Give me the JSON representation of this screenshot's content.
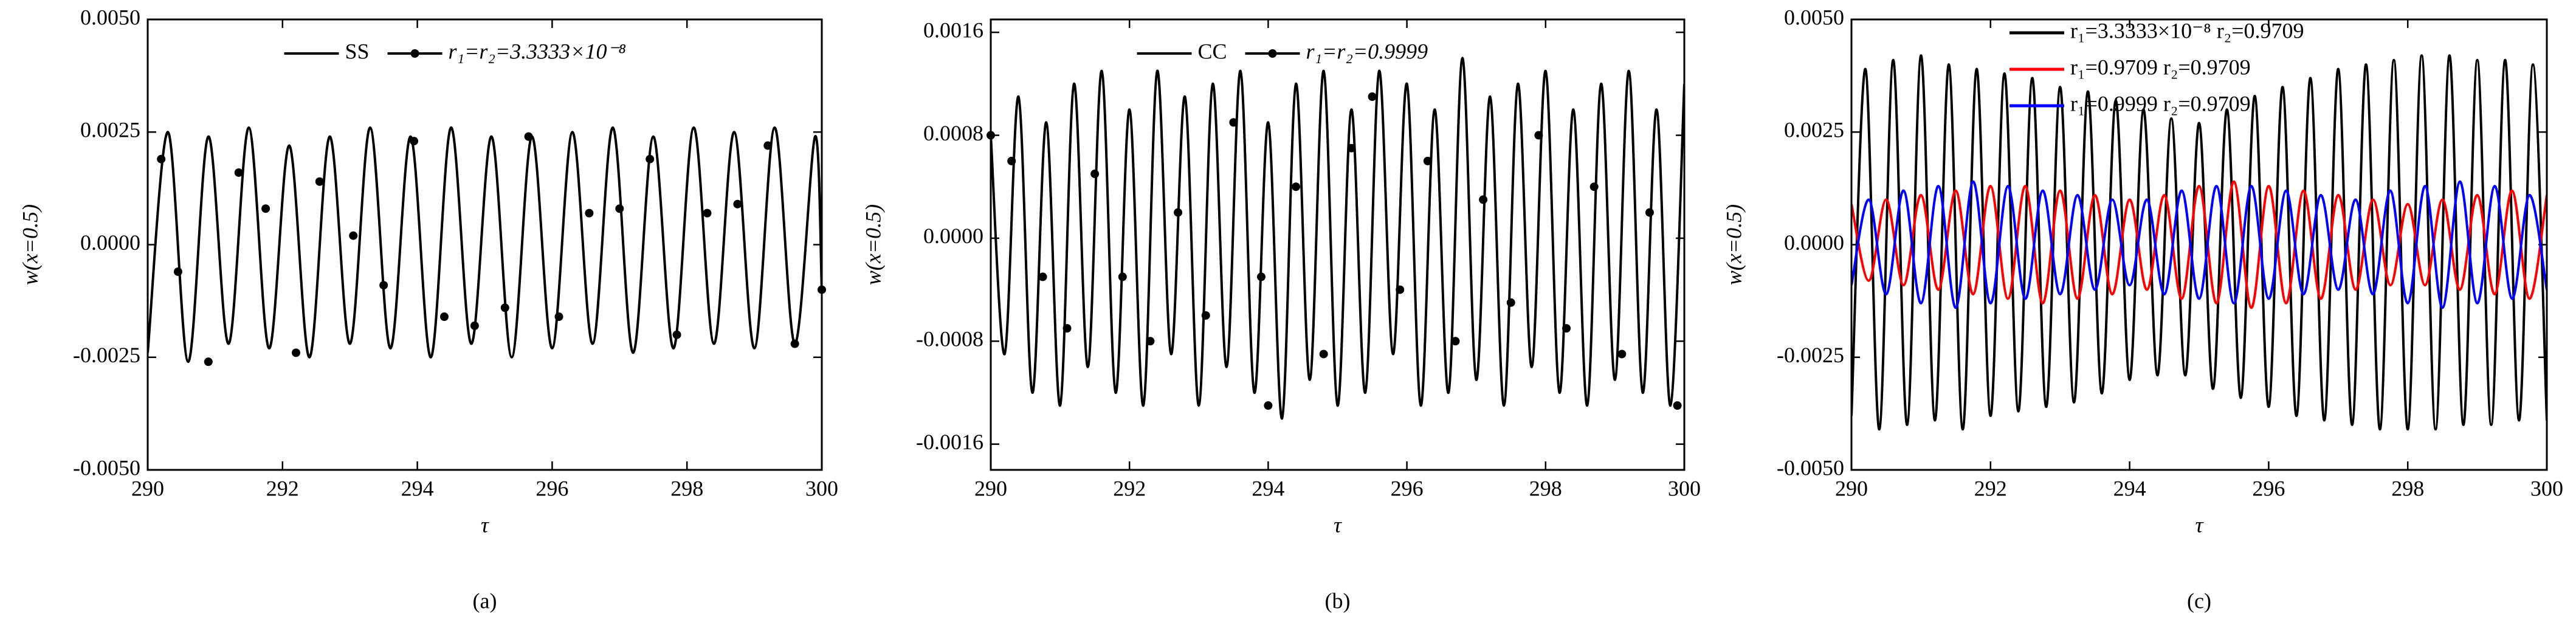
{
  "chart_data": [
    {
      "type": "line",
      "label": "(a)",
      "xlabel": "τ",
      "ylabel": "w(x=0.5)",
      "legend": "top-center",
      "xlim": [
        290,
        300
      ],
      "xticks": [
        290,
        292,
        294,
        296,
        298,
        300
      ],
      "ylim": [
        -0.005,
        0.005
      ],
      "yticks": [
        {
          "value": -0.005,
          "label": "-0.0050"
        },
        {
          "value": -0.0025,
          "label": "-0.0025"
        },
        {
          "value": 0,
          "label": "0.0000"
        },
        {
          "value": 0.0025,
          "label": "0.0025"
        },
        {
          "value": 0.005,
          "label": "0.0050"
        }
      ],
      "series": [
        {
          "name": "SS",
          "color": "#000000",
          "style": "line",
          "x": [
            290,
            290.3,
            290.6,
            290.9,
            291.2,
            291.5,
            291.8,
            292.1,
            292.4,
            292.7,
            293,
            293.3,
            293.6,
            293.9,
            294.2,
            294.5,
            294.8,
            295.1,
            295.4,
            295.7,
            296,
            296.3,
            296.6,
            296.9,
            297.2,
            297.5,
            297.8,
            298.1,
            298.4,
            298.7,
            299,
            299.3,
            299.6,
            299.9,
            300
          ],
          "values": [
            -0.0024,
            0.0025,
            -0.0026,
            0.0024,
            -0.0022,
            0.0026,
            -0.0023,
            0.0022,
            -0.0025,
            0.0024,
            -0.0022,
            0.0026,
            -0.0023,
            0.0024,
            -0.0025,
            0.0026,
            -0.0022,
            0.0024,
            -0.0025,
            0.0024,
            -0.0023,
            0.0025,
            -0.0022,
            0.0026,
            -0.0024,
            0.0024,
            -0.0023,
            0.0026,
            -0.0022,
            0.0025,
            -0.0023,
            0.0026,
            -0.0022,
            0.0024,
            -0.001
          ]
        },
        {
          "name": "r₁=r₂=3.3333×10⁻⁸",
          "color": "#000000",
          "style": "markers",
          "x": [
            290.2,
            290.45,
            290.9,
            291.35,
            291.75,
            292.2,
            292.55,
            293.05,
            293.5,
            293.95,
            294.4,
            294.85,
            295.3,
            295.65,
            296.1,
            296.55,
            297.0,
            297.45,
            297.85,
            298.3,
            298.75,
            299.2,
            299.6,
            300
          ],
          "values": [
            0.0019,
            -0.0006,
            -0.0026,
            0.0016,
            0.0008,
            -0.0024,
            0.0014,
            0.0002,
            -0.0009,
            0.0023,
            -0.0016,
            -0.0018,
            -0.0014,
            0.0024,
            -0.0016,
            0.0007,
            0.0008,
            0.0019,
            -0.002,
            0.0007,
            0.0009,
            0.0022,
            -0.0022,
            -0.001
          ]
        }
      ]
    },
    {
      "type": "line",
      "label": "(b)",
      "xlabel": "τ",
      "ylabel": "w(x=0.5)",
      "legend": "top-center",
      "xlim": [
        290,
        300
      ],
      "xticks": [
        290,
        292,
        294,
        296,
        298,
        300
      ],
      "ylim": [
        -0.0018,
        0.0017
      ],
      "yticks": [
        {
          "value": -0.0016,
          "label": "-0.0016"
        },
        {
          "value": -0.0008,
          "label": "-0.0008"
        },
        {
          "value": 0,
          "label": "0.0000"
        },
        {
          "value": 0.0008,
          "label": "0.0008"
        },
        {
          "value": 0.0016,
          "label": "0.0016"
        }
      ],
      "series": [
        {
          "name": "CC",
          "color": "#000000",
          "style": "line",
          "x": [
            290,
            290.2,
            290.4,
            290.6,
            290.8,
            291,
            291.2,
            291.4,
            291.6,
            291.8,
            292,
            292.2,
            292.4,
            292.6,
            292.8,
            293,
            293.2,
            293.4,
            293.6,
            293.8,
            294,
            294.2,
            294.4,
            294.6,
            294.8,
            295,
            295.2,
            295.4,
            295.6,
            295.8,
            296,
            296.2,
            296.4,
            296.6,
            296.8,
            297,
            297.2,
            297.4,
            297.6,
            297.8,
            298,
            298.2,
            298.4,
            298.6,
            298.8,
            299,
            299.2,
            299.4,
            299.6,
            299.8,
            300
          ],
          "values": [
            0.0008,
            -0.0009,
            0.0011,
            -0.0012,
            0.0009,
            -0.0013,
            0.0012,
            -0.001,
            0.0013,
            -0.0012,
            0.001,
            -0.0013,
            0.0013,
            -0.0009,
            0.0011,
            -0.0013,
            0.0012,
            -0.001,
            0.0013,
            -0.0012,
            0.0009,
            -0.0014,
            0.0012,
            -0.0011,
            0.0013,
            -0.0013,
            0.001,
            -0.0012,
            0.0013,
            -0.0009,
            0.0012,
            -0.0013,
            0.001,
            -0.0012,
            0.0014,
            -0.0011,
            0.0011,
            -0.0013,
            0.0012,
            -0.001,
            0.0013,
            -0.0012,
            0.001,
            -0.0013,
            0.0012,
            -0.0011,
            0.0013,
            -0.0012,
            0.001,
            -0.0013,
            0.0012
          ]
        },
        {
          "name": "r₁=r₂=0.9999",
          "color": "#000000",
          "style": "markers",
          "x": [
            290,
            290.3,
            290.75,
            291.1,
            291.5,
            291.9,
            292.3,
            292.7,
            293.1,
            293.5,
            293.9,
            294.0,
            294.4,
            294.8,
            295.2,
            295.5,
            295.9,
            296.3,
            296.7,
            297.1,
            297.5,
            297.9,
            298.3,
            298.7,
            299.1,
            299.5,
            299.9
          ],
          "values": [
            0.0008,
            0.0006,
            -0.0003,
            -0.0007,
            0.0005,
            -0.0003,
            -0.0008,
            0.0002,
            -0.0006,
            0.0009,
            -0.0003,
            -0.0013,
            0.0004,
            -0.0009,
            0.0007,
            0.0011,
            -0.0004,
            0.0006,
            -0.0008,
            0.0003,
            -0.0005,
            0.0008,
            -0.0007,
            0.0004,
            -0.0009,
            0.0002,
            -0.0013
          ]
        }
      ]
    },
    {
      "type": "line",
      "label": "(c)",
      "xlabel": "τ",
      "ylabel": "w(x=0.5)",
      "legend": "top-left",
      "xlim": [
        290,
        300
      ],
      "xticks": [
        290,
        292,
        294,
        296,
        298,
        300
      ],
      "ylim": [
        -0.005,
        0.005
      ],
      "yticks": [
        {
          "value": -0.005,
          "label": "-0.0050"
        },
        {
          "value": -0.0025,
          "label": "-0.0025"
        },
        {
          "value": 0,
          "label": "0.0000"
        },
        {
          "value": 0.0025,
          "label": "0.0025"
        },
        {
          "value": 0.005,
          "label": "0.0050"
        }
      ],
      "series": [
        {
          "name": "r₁=3.3333×10⁻⁸  r₂=0.9709",
          "color": "#000000",
          "style": "line",
          "x": [
            290,
            290.2,
            290.4,
            290.6,
            290.8,
            291,
            291.2,
            291.4,
            291.6,
            291.8,
            292,
            292.2,
            292.4,
            292.6,
            292.8,
            293,
            293.2,
            293.4,
            293.6,
            293.8,
            294,
            294.2,
            294.4,
            294.6,
            294.8,
            295,
            295.2,
            295.4,
            295.6,
            295.8,
            296,
            296.2,
            296.4,
            296.6,
            296.8,
            297,
            297.2,
            297.4,
            297.6,
            297.8,
            298,
            298.2,
            298.4,
            298.6,
            298.8,
            299,
            299.2,
            299.4,
            299.6,
            299.8,
            300
          ],
          "values": [
            -0.0038,
            0.0039,
            -0.0041,
            0.0041,
            -0.004,
            0.0042,
            -0.0039,
            0.004,
            -0.0041,
            0.0039,
            -0.0038,
            0.0038,
            -0.0037,
            0.0037,
            -0.0036,
            0.0035,
            -0.0035,
            0.0034,
            -0.0033,
            0.0032,
            -0.003,
            0.003,
            -0.0029,
            0.0028,
            -0.0029,
            0.0027,
            -0.0032,
            0.003,
            -0.0034,
            0.0033,
            -0.0036,
            0.0035,
            -0.0038,
            0.0037,
            -0.0039,
            0.0039,
            -0.004,
            0.004,
            -0.0041,
            0.0041,
            -0.0041,
            0.0042,
            -0.0041,
            0.0042,
            -0.004,
            0.0041,
            -0.004,
            0.0041,
            -0.0039,
            0.004,
            -0.0039
          ]
        },
        {
          "name": "r₁=0.9709  r₂=0.9709",
          "color": "#ff0000",
          "style": "line",
          "x": [
            290,
            290.25,
            290.5,
            290.75,
            291,
            291.25,
            291.5,
            291.75,
            292,
            292.25,
            292.5,
            292.75,
            293,
            293.25,
            293.5,
            293.75,
            294,
            294.25,
            294.5,
            294.75,
            295,
            295.25,
            295.5,
            295.75,
            296,
            296.25,
            296.5,
            296.75,
            297,
            297.25,
            297.5,
            297.75,
            298,
            298.25,
            298.5,
            298.75,
            299,
            299.25,
            299.5,
            299.75,
            300
          ],
          "values": [
            0.0009,
            -0.0008,
            0.001,
            -0.0009,
            0.0011,
            -0.001,
            0.0012,
            -0.0011,
            0.0013,
            -0.0012,
            0.0013,
            -0.0013,
            0.0012,
            -0.0012,
            0.0011,
            -0.0011,
            0.001,
            -0.001,
            0.0011,
            -0.0012,
            0.0013,
            -0.0013,
            0.0014,
            -0.0014,
            0.0013,
            -0.0013,
            0.0012,
            -0.0012,
            0.0011,
            -0.001,
            0.001,
            -0.0009,
            0.0009,
            -0.0009,
            0.001,
            -0.001,
            0.0011,
            -0.0011,
            0.0012,
            -0.0012,
            0.0011
          ]
        },
        {
          "name": "r₁=0.9999  r₂=0.9709",
          "color": "#0000ff",
          "style": "line",
          "x": [
            290,
            290.25,
            290.5,
            290.75,
            291,
            291.25,
            291.5,
            291.75,
            292,
            292.25,
            292.5,
            292.75,
            293,
            293.25,
            293.5,
            293.75,
            294,
            294.25,
            294.5,
            294.75,
            295,
            295.25,
            295.5,
            295.75,
            296,
            296.25,
            296.5,
            296.75,
            297,
            297.25,
            297.5,
            297.75,
            298,
            298.25,
            298.5,
            298.75,
            299,
            299.25,
            299.5,
            299.75,
            300
          ],
          "values": [
            -0.0009,
            0.001,
            -0.0011,
            0.0012,
            -0.0013,
            0.0013,
            -0.0014,
            0.0014,
            -0.0013,
            0.0013,
            -0.0012,
            0.0012,
            -0.0011,
            0.0011,
            -0.001,
            0.001,
            -0.0009,
            0.001,
            -0.0011,
            0.0012,
            -0.0012,
            0.0013,
            -0.0013,
            0.0013,
            -0.0012,
            0.0012,
            -0.0011,
            0.0011,
            -0.001,
            0.001,
            -0.0011,
            0.0012,
            -0.0013,
            0.0013,
            -0.0014,
            0.0014,
            -0.0013,
            0.0013,
            -0.0012,
            0.0011,
            -0.001
          ]
        }
      ]
    }
  ]
}
